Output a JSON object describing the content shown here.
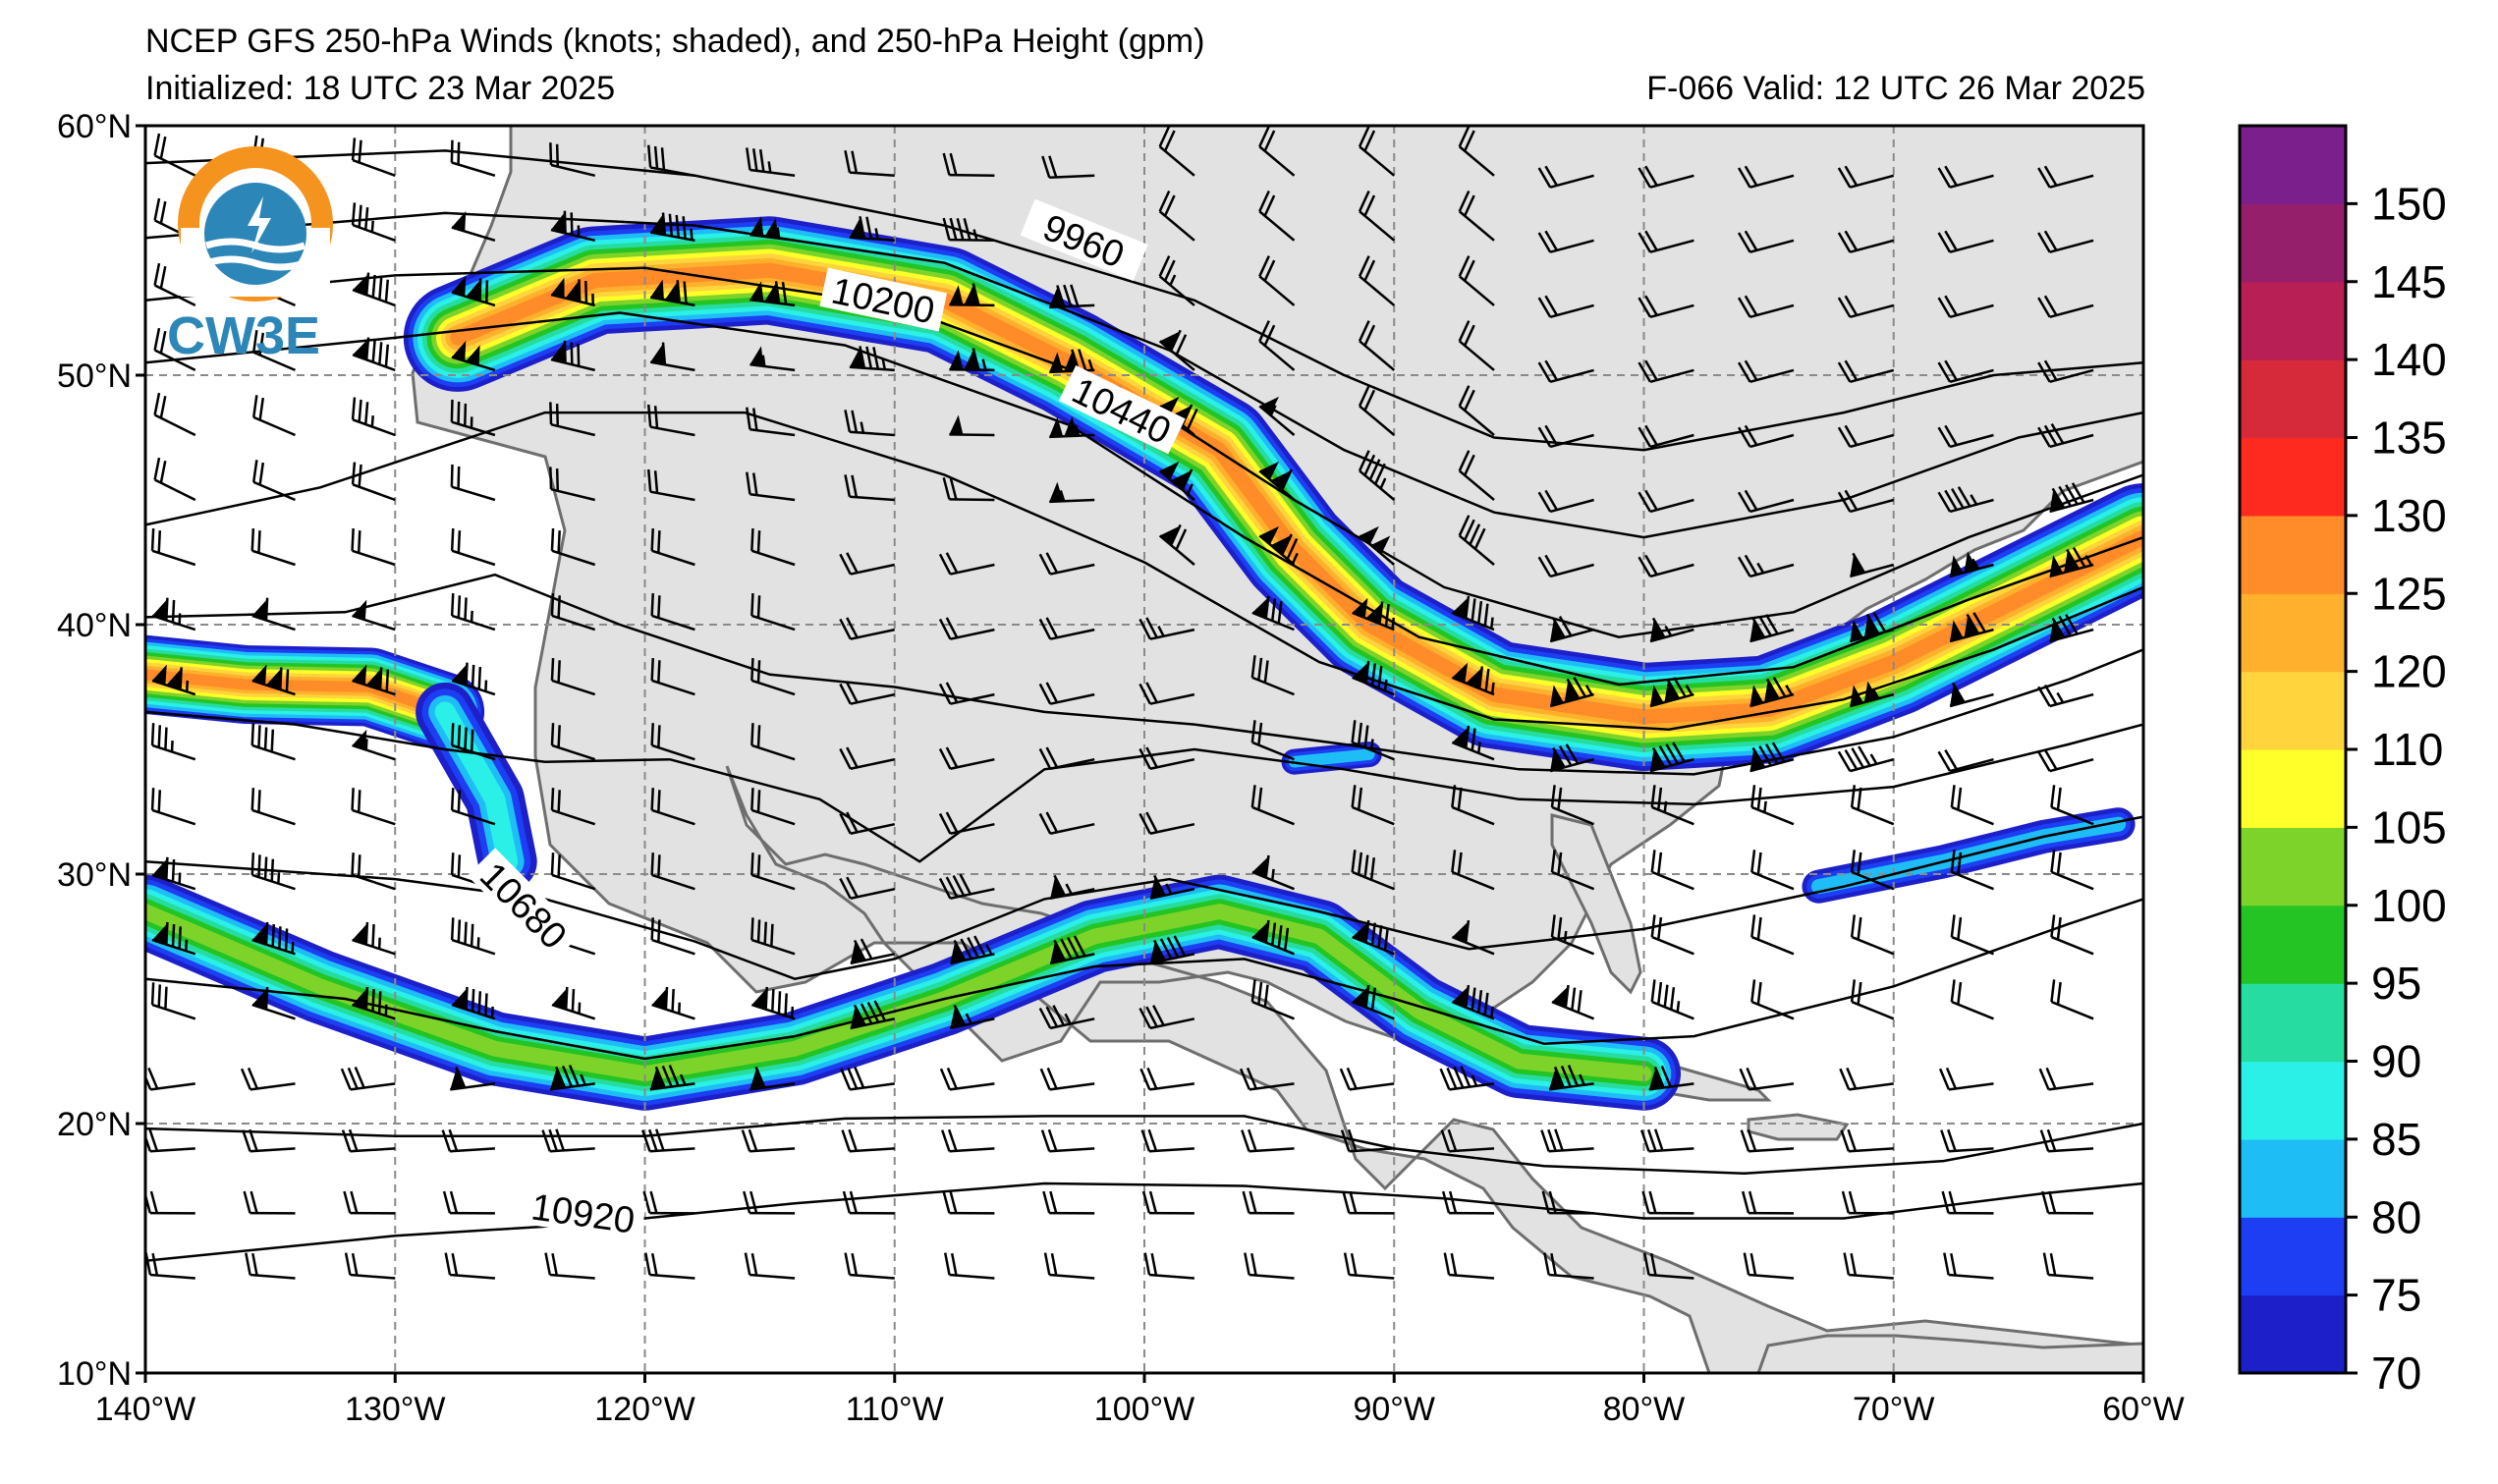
{
  "title": {
    "line1": "NCEP GFS 250-hPa Winds (knots; shaded), and 250-hPa Height (gpm)",
    "initialized": "Initialized: 18 UTC 23 Mar 2025",
    "valid": "F-066  Valid: 12 UTC 26 Mar 2025"
  },
  "logo": {
    "text": "CW3E",
    "icon": "cw3e-logo-icon"
  },
  "map": {
    "lon_range": [
      -140,
      -60
    ],
    "lat_range": [
      10,
      60
    ],
    "lon_ticks": [
      {
        "value": -140,
        "label": "140°W"
      },
      {
        "value": -130,
        "label": "130°W"
      },
      {
        "value": -120,
        "label": "120°W"
      },
      {
        "value": -110,
        "label": "110°W"
      },
      {
        "value": -100,
        "label": "100°W"
      },
      {
        "value": -90,
        "label": "90°W"
      },
      {
        "value": -80,
        "label": "80°W"
      },
      {
        "value": -70,
        "label": "70°W"
      },
      {
        "value": -60,
        "label": "60°W"
      }
    ],
    "lat_ticks": [
      {
        "value": 60,
        "label": "60°N"
      },
      {
        "value": 50,
        "label": "50°N"
      },
      {
        "value": 40,
        "label": "40°N"
      },
      {
        "value": 30,
        "label": "30°N"
      },
      {
        "value": 20,
        "label": "20°N"
      },
      {
        "value": 10,
        "label": "10°N"
      }
    ],
    "land_color": "#e2e2e2",
    "ocean_color": "#ffffff",
    "grid": "dashed",
    "contour_labels": [
      "9960",
      "10200",
      "10440",
      "10680",
      "10920"
    ]
  },
  "colorbar": {
    "levels": [
      70,
      75,
      80,
      85,
      90,
      95,
      100,
      105,
      110,
      120,
      125,
      130,
      135,
      140,
      145,
      150,
      155
    ],
    "colors": [
      "#1d1fc9",
      "#1d3ef2",
      "#1fbdf5",
      "#2af0e8",
      "#27dca0",
      "#23c423",
      "#7ed32a",
      "#ffff29",
      "#ffd43d",
      "#ffb02c",
      "#ff8c28",
      "#ff2a1f",
      "#d62a3a",
      "#b71f55",
      "#961f6b",
      "#7a1f8c"
    ],
    "labels": [
      "70",
      "75",
      "80",
      "85",
      "90",
      "95",
      "100",
      "105",
      "110",
      "120",
      "125",
      "130",
      "135",
      "140",
      "145",
      "150"
    ]
  }
}
